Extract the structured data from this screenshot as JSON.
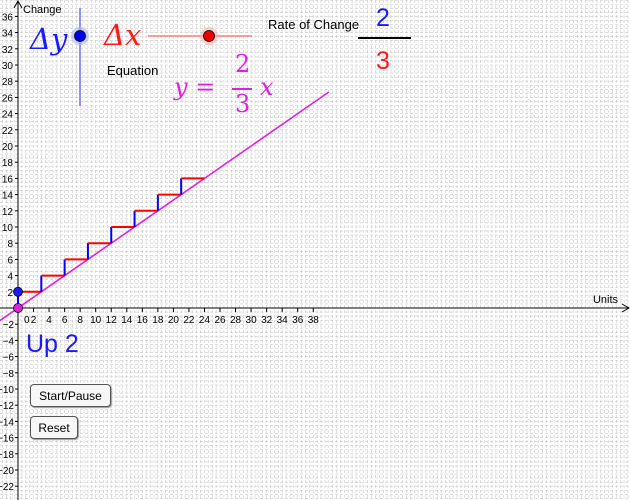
{
  "axes": {
    "x_label": "Units",
    "y_label": "Change",
    "x_ticks": [
      "2",
      "4",
      "6",
      "8",
      "10",
      "12",
      "14",
      "16",
      "18",
      "20",
      "22",
      "24",
      "26",
      "28",
      "30",
      "32",
      "34",
      "36",
      "38"
    ],
    "y_ticks_pos": [
      "2",
      "4",
      "6",
      "8",
      "10",
      "12",
      "14",
      "16",
      "18",
      "20",
      "22",
      "24",
      "26",
      "28",
      "30",
      "32",
      "34",
      "36"
    ],
    "y_ticks_neg": [
      "−2",
      "−4",
      "−6",
      "−8",
      "−10",
      "−12",
      "−14",
      "−16",
      "−18",
      "−20",
      "−22"
    ],
    "origin_label": "0"
  },
  "sliders": {
    "dy_label": "Δy",
    "dx_label": "Δx",
    "dy_value": 2,
    "dx_value": 3
  },
  "rate": {
    "caption": "Rate of Change",
    "numerator": "2",
    "denominator": "3"
  },
  "equation": {
    "caption": "Equation",
    "lhs": "y =",
    "numerator": "2",
    "denominator": "3",
    "variable": "x"
  },
  "status_text": "Up 2",
  "buttons": {
    "start_pause": "Start/Pause",
    "reset": "Reset"
  },
  "colors": {
    "line": "#e020e0",
    "run": "#ff0000",
    "rise": "#0000ff",
    "grid": "#c8c8c8"
  }
}
